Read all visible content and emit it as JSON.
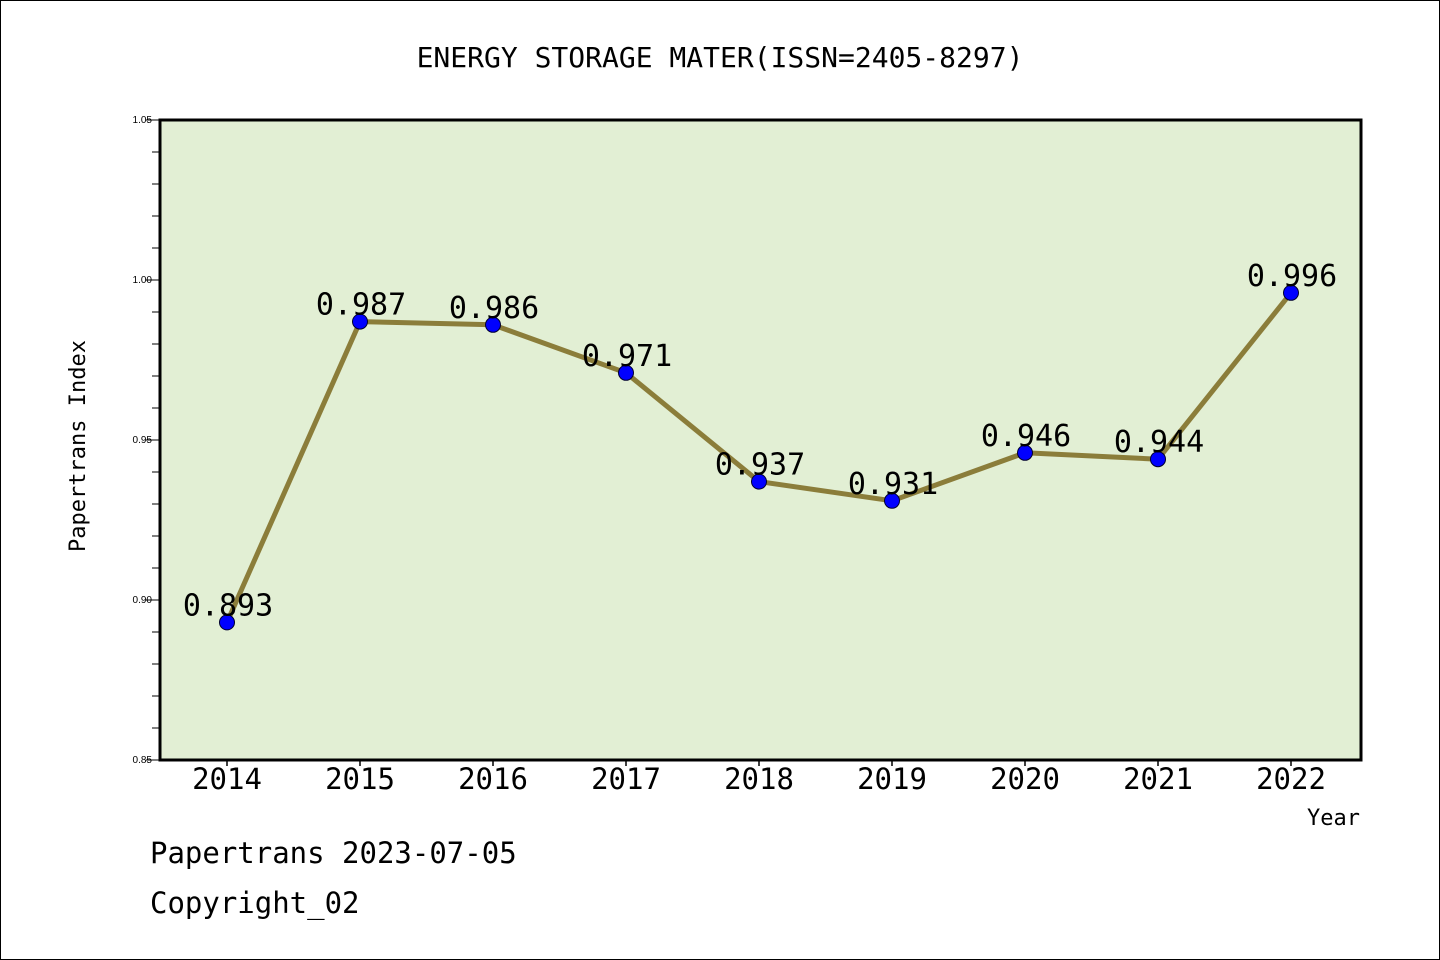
{
  "chart_data": {
    "type": "line",
    "title": "ENERGY STORAGE MATER(ISSN=2405-8297)",
    "xlabel": "Year",
    "ylabel": "Papertrans Index",
    "categories": [
      "2014",
      "2015",
      "2016",
      "2017",
      "2018",
      "2019",
      "2020",
      "2021",
      "2022"
    ],
    "values": [
      0.893,
      0.987,
      0.986,
      0.971,
      0.937,
      0.931,
      0.946,
      0.944,
      0.996
    ],
    "data_labels": [
      "0.893",
      "0.987",
      "0.986",
      "0.971",
      "0.937",
      "0.931",
      "0.946",
      "0.944",
      "0.996"
    ],
    "ylim": [
      0.85,
      1.05
    ],
    "yticks": [
      "0.85",
      "0.90",
      "0.95",
      "1.00",
      "1.05"
    ],
    "grid": false,
    "colors": {
      "plot_background": "#e2efd4",
      "line": "#8b7d3a",
      "marker": "#0000ff"
    }
  },
  "footer": {
    "line1": "Papertrans 2023-07-05",
    "line2": "Copyright_02"
  }
}
